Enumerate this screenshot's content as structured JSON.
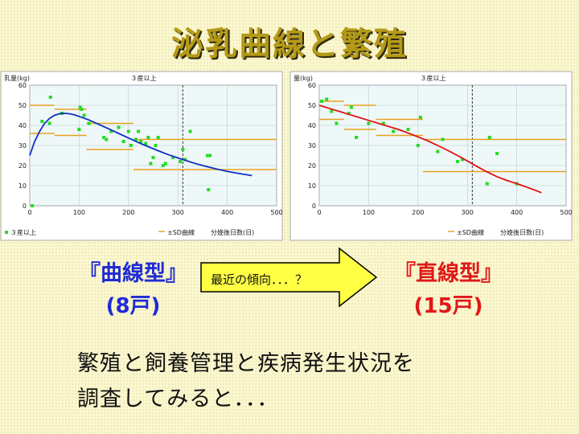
{
  "title": "泌乳曲線と繁殖",
  "chart_data": [
    {
      "type": "scatter",
      "title": "３産以上",
      "ylabel": "乳量(kg)",
      "xlabel": "分娩後日数(日)",
      "legend": {
        "points": "３産以上",
        "lines": "±SD曲線"
      },
      "xlim": [
        0,
        500
      ],
      "ylim": [
        0,
        60
      ],
      "xticks": [
        0,
        100,
        200,
        300,
        400,
        500
      ],
      "yticks": [
        0,
        10,
        20,
        30,
        40,
        50,
        60
      ],
      "vline_x": 310,
      "points": [
        [
          5,
          0
        ],
        [
          25,
          42
        ],
        [
          40,
          41
        ],
        [
          42,
          54
        ],
        [
          65,
          46
        ],
        [
          100,
          38
        ],
        [
          102,
          49
        ],
        [
          105,
          48
        ],
        [
          110,
          45
        ],
        [
          120,
          41
        ],
        [
          150,
          34
        ],
        [
          155,
          33
        ],
        [
          165,
          37
        ],
        [
          180,
          39
        ],
        [
          190,
          32
        ],
        [
          200,
          37
        ],
        [
          205,
          30
        ],
        [
          215,
          33
        ],
        [
          220,
          37
        ],
        [
          225,
          32
        ],
        [
          235,
          31
        ],
        [
          240,
          34
        ],
        [
          245,
          21
        ],
        [
          250,
          24
        ],
        [
          255,
          30
        ],
        [
          260,
          34
        ],
        [
          270,
          20
        ],
        [
          275,
          21
        ],
        [
          290,
          24
        ],
        [
          305,
          22
        ],
        [
          310,
          28
        ],
        [
          315,
          23
        ],
        [
          325,
          37
        ],
        [
          360,
          25
        ],
        [
          362,
          8
        ],
        [
          365,
          25
        ]
      ],
      "curve": [
        [
          0,
          25
        ],
        [
          10,
          32
        ],
        [
          20,
          37
        ],
        [
          30,
          41
        ],
        [
          40,
          43.5
        ],
        [
          50,
          45
        ],
        [
          60,
          45.8
        ],
        [
          70,
          46
        ],
        [
          80,
          45.8
        ],
        [
          90,
          45.3
        ],
        [
          100,
          44.5
        ],
        [
          120,
          42.7
        ],
        [
          140,
          40.5
        ],
        [
          160,
          38.3
        ],
        [
          180,
          36
        ],
        [
          200,
          33.7
        ],
        [
          220,
          31.5
        ],
        [
          240,
          29.4
        ],
        [
          260,
          27.4
        ],
        [
          280,
          25.5
        ],
        [
          300,
          23.8
        ],
        [
          320,
          22.2
        ],
        [
          340,
          20.7
        ],
        [
          360,
          19.4
        ],
        [
          380,
          18.2
        ],
        [
          400,
          17.1
        ],
        [
          420,
          16.2
        ],
        [
          440,
          15.4
        ],
        [
          450,
          15
        ]
      ],
      "sd_steps": [
        {
          "x": [
            0,
            50
          ],
          "upper": 50,
          "lower": 36
        },
        {
          "x": [
            50,
            115
          ],
          "upper": 48,
          "lower": 35
        },
        {
          "x": [
            115,
            210
          ],
          "upper": 41,
          "lower": 28
        },
        {
          "x": [
            210,
            500
          ],
          "upper": 33,
          "lower": 18
        }
      ],
      "colors": {
        "points": "#22dd22",
        "curve": "#1030c0",
        "sd": "#e8a020"
      }
    },
    {
      "type": "scatter",
      "title": "３産以上",
      "ylabel": "量(kg)",
      "xlabel": "分娩後日数(日)",
      "legend": {
        "points": "",
        "lines": "±SD曲線"
      },
      "xlim": [
        0,
        500
      ],
      "ylim": [
        0,
        60
      ],
      "xticks": [
        0,
        100,
        200,
        300,
        400,
        500
      ],
      "yticks": [
        0,
        10,
        20,
        30,
        40,
        50,
        60
      ],
      "vline_x": 310,
      "points": [
        [
          5,
          52
        ],
        [
          15,
          53
        ],
        [
          25,
          47
        ],
        [
          35,
          41
        ],
        [
          60,
          46
        ],
        [
          65,
          49
        ],
        [
          75,
          34
        ],
        [
          100,
          41
        ],
        [
          130,
          41
        ],
        [
          150,
          37
        ],
        [
          180,
          38
        ],
        [
          200,
          30
        ],
        [
          205,
          44
        ],
        [
          240,
          27
        ],
        [
          250,
          33
        ],
        [
          280,
          22
        ],
        [
          290,
          23
        ],
        [
          340,
          11
        ],
        [
          345,
          34
        ],
        [
          360,
          26
        ],
        [
          400,
          11
        ]
      ],
      "curve": [
        [
          0,
          50
        ],
        [
          20,
          48.5
        ],
        [
          40,
          47
        ],
        [
          60,
          45.5
        ],
        [
          80,
          44
        ],
        [
          100,
          42.5
        ],
        [
          120,
          41
        ],
        [
          140,
          39.5
        ],
        [
          160,
          38
        ],
        [
          180,
          36.2
        ],
        [
          200,
          34.3
        ],
        [
          220,
          32.3
        ],
        [
          240,
          30
        ],
        [
          260,
          27.6
        ],
        [
          280,
          25
        ],
        [
          300,
          22.3
        ],
        [
          320,
          19.5
        ],
        [
          340,
          16.8
        ],
        [
          360,
          14.5
        ],
        [
          380,
          12.6
        ],
        [
          400,
          11
        ],
        [
          420,
          9.3
        ],
        [
          440,
          7.5
        ],
        [
          450,
          6.5
        ]
      ],
      "sd_steps": [
        {
          "x": [
            0,
            50
          ],
          "upper": 52,
          "lower": 43
        },
        {
          "x": [
            50,
            115
          ],
          "upper": 50,
          "lower": 38
        },
        {
          "x": [
            115,
            210
          ],
          "upper": 43,
          "lower": 35
        },
        {
          "x": [
            210,
            500
          ],
          "upper": 33,
          "lower": 17
        }
      ],
      "colors": {
        "points": "#22dd22",
        "curve": "#e01010",
        "sd": "#e8a020"
      }
    }
  ],
  "types": {
    "left": {
      "name": "『曲線型』",
      "count": "(8戸)",
      "color": "#1f2bd6"
    },
    "right": {
      "name": "『直線型』",
      "count": "(15戸)",
      "color": "#e01818"
    }
  },
  "arrow_text": "最近の傾向．．．？",
  "arrow_color": "#ffff44",
  "bottom_lines": [
    "繁殖と飼養管理と疾病発生状況を",
    "調査してみると．．．"
  ]
}
